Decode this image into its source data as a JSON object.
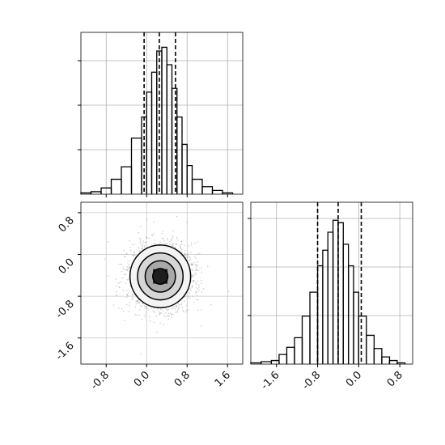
{
  "chart_data": [
    {
      "type": "bar",
      "panel": "histogram-param-1",
      "x_bin_edges": [
        -1.3,
        -1.1,
        -0.9,
        -0.7,
        -0.5,
        -0.3,
        -0.1,
        0.0,
        0.1,
        0.2,
        0.3,
        0.4,
        0.5,
        0.6,
        0.7,
        0.8,
        0.9,
        1.1,
        1.3,
        1.5,
        1.7,
        1.9
      ],
      "values": [
        1,
        2,
        5,
        12,
        22,
        45,
        62,
        82,
        98,
        115,
        118,
        104,
        85,
        62,
        40,
        23,
        12,
        6,
        3,
        1,
        0
      ],
      "quantile_lines": [
        -0.05,
        0.25,
        0.57
      ],
      "xlim": [
        -1.3,
        1.9
      ],
      "ylim": [
        0,
        130
      ],
      "grid": true
    },
    {
      "type": "heatmap",
      "panel": "2d-density",
      "x_ticks": [
        "-0.8",
        "0.0",
        "0.8",
        "1.6"
      ],
      "y_ticks": [
        "0.8",
        "0.0",
        "-0.8",
        "-1.6"
      ],
      "x_tick_values": [
        -0.8,
        0.0,
        0.8,
        1.6
      ],
      "y_tick_values": [
        0.8,
        0.0,
        -0.8,
        -1.6
      ],
      "xlim": [
        -1.3,
        1.9
      ],
      "ylim": [
        -2.1,
        1.0
      ],
      "center": [
        0.27,
        -0.42
      ],
      "sigma": [
        0.3,
        0.3
      ],
      "contour_levels_sigma": [
        0.5,
        1.0,
        1.5,
        2.0
      ],
      "grid": true
    },
    {
      "type": "bar",
      "panel": "histogram-param-2",
      "x_bin_edges": [
        -2.1,
        -1.9,
        -1.7,
        -1.55,
        -1.4,
        -1.25,
        -1.1,
        -0.95,
        -0.8,
        -0.7,
        -0.6,
        -0.5,
        -0.4,
        -0.3,
        -0.2,
        -0.1,
        0.0,
        0.15,
        0.3,
        0.45,
        0.6,
        0.75,
        0.9,
        1.05
      ],
      "values": [
        1,
        2,
        3,
        8,
        14,
        22,
        40,
        60,
        82,
        95,
        110,
        120,
        118,
        100,
        82,
        60,
        40,
        24,
        13,
        6,
        3,
        1,
        0
      ],
      "quantile_lines": [
        -0.8,
        -0.4,
        0.05
      ],
      "x_ticks": [
        "-1.6",
        "-0.8",
        "0.0",
        "0.8"
      ],
      "x_tick_values": [
        -1.6,
        -0.8,
        0.0,
        0.8
      ],
      "xlim": [
        -2.1,
        1.05
      ],
      "ylim": [
        0,
        135
      ],
      "grid": true
    }
  ]
}
